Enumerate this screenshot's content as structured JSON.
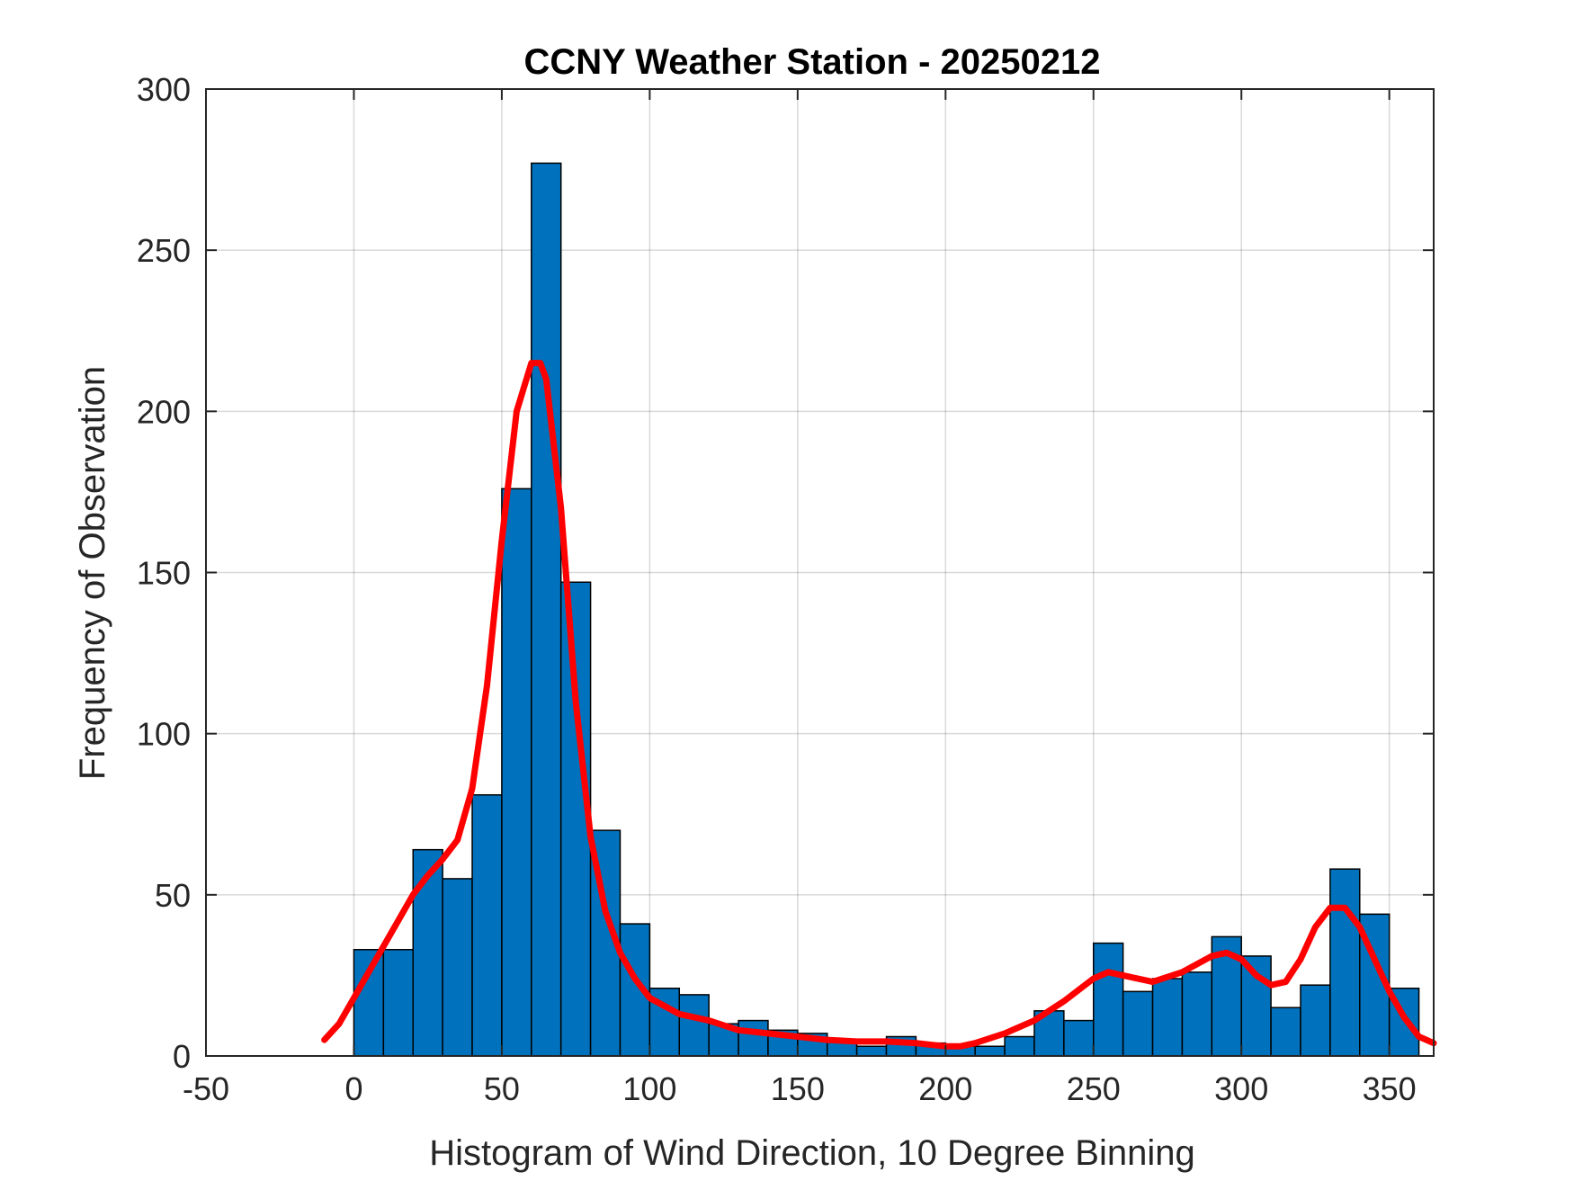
{
  "chart_data": {
    "type": "bar",
    "title": "CCNY Weather Station - 20250212",
    "xlabel": "Histogram of Wind Direction, 10 Degree Binning",
    "ylabel": "Frequency of Observation",
    "xlim": [
      -50,
      365
    ],
    "ylim": [
      0,
      300
    ],
    "grid": true,
    "xticks": [
      "-50",
      "0",
      "50",
      "100",
      "150",
      "200",
      "250",
      "300",
      "350"
    ],
    "yticks": [
      "0",
      "50",
      "100",
      "150",
      "200",
      "250",
      "300"
    ],
    "bin_width": 10,
    "bin_edges_start": [
      0,
      10,
      20,
      30,
      40,
      50,
      60,
      70,
      80,
      90,
      100,
      110,
      120,
      130,
      140,
      150,
      160,
      170,
      180,
      190,
      200,
      210,
      220,
      230,
      240,
      250,
      260,
      270,
      280,
      290,
      300,
      310,
      320,
      330,
      340,
      350
    ],
    "values": [
      33,
      33,
      64,
      55,
      81,
      176,
      277,
      147,
      70,
      41,
      21,
      19,
      10,
      11,
      8,
      7,
      5,
      3,
      6,
      4,
      3,
      3,
      6,
      14,
      11,
      35,
      20,
      24,
      26,
      37,
      31,
      15,
      22,
      58,
      44,
      21
    ],
    "bar_color": "#0072BD",
    "series": [
      {
        "type": "line",
        "color": "#FF0000",
        "x": [
          -10,
          -5,
          0,
          5,
          10,
          15,
          20,
          25,
          30,
          35,
          40,
          45,
          50,
          55,
          60,
          63,
          65,
          70,
          75,
          80,
          85,
          90,
          95,
          100,
          110,
          120,
          130,
          140,
          150,
          160,
          170,
          180,
          190,
          200,
          205,
          210,
          220,
          230,
          240,
          250,
          255,
          260,
          270,
          280,
          290,
          295,
          300,
          305,
          310,
          315,
          320,
          325,
          330,
          335,
          340,
          345,
          350,
          355,
          360,
          365
        ],
        "y": [
          5,
          10,
          18,
          26,
          34,
          42,
          50,
          56,
          61,
          67,
          83,
          115,
          160,
          200,
          215,
          215,
          210,
          170,
          110,
          68,
          45,
          32,
          24,
          18,
          13,
          11,
          8,
          7,
          6,
          5,
          4.5,
          4.5,
          4,
          3,
          3,
          4,
          7,
          11,
          17,
          24,
          26,
          25,
          23,
          26,
          31,
          32,
          30,
          25,
          22,
          23,
          30,
          40,
          46,
          46,
          40,
          30,
          20,
          12,
          6,
          4
        ]
      }
    ]
  }
}
